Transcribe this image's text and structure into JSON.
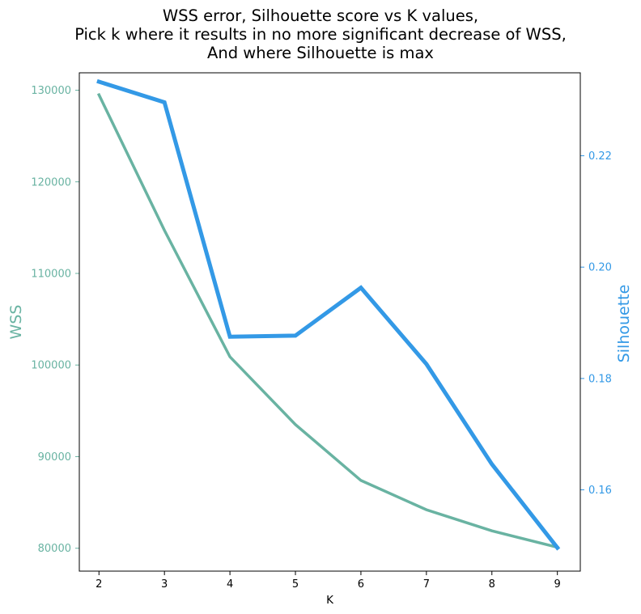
{
  "chart_data": {
    "type": "line",
    "title_lines": [
      "WSS error, Silhouette score vs K values,",
      "Pick k where it results in no more significant decrease of WSS,",
      "And where Silhouette is max"
    ],
    "xlabel": "K",
    "ylabel_left": "WSS",
    "ylabel_right": "Silhouette",
    "x": [
      2,
      3,
      4,
      5,
      6,
      7,
      8,
      9
    ],
    "x_ticks": [
      "2",
      "3",
      "4",
      "5",
      "6",
      "7",
      "8",
      "9"
    ],
    "xlim": [
      1.7,
      9.35
    ],
    "y_left_ticks": [
      "80000",
      "90000",
      "100000",
      "110000",
      "120000",
      "130000"
    ],
    "y_left_lim": [
      77500,
      131900
    ],
    "y_right_ticks": [
      "0.16",
      "0.18",
      "0.20",
      "0.22"
    ],
    "y_right_lim": [
      0.1454,
      0.2349
    ],
    "series": [
      {
        "name": "WSS",
        "axis": "left",
        "color": "#69b3a2",
        "values": [
          129500,
          114700,
          100900,
          93500,
          87400,
          84200,
          81900,
          80100
        ]
      },
      {
        "name": "Silhouette",
        "axis": "right",
        "color": "#3399e6",
        "values": [
          0.2333,
          0.2296,
          0.1875,
          0.1877,
          0.1963,
          0.1826,
          0.1646,
          0.1496
        ]
      }
    ],
    "grid": false
  }
}
